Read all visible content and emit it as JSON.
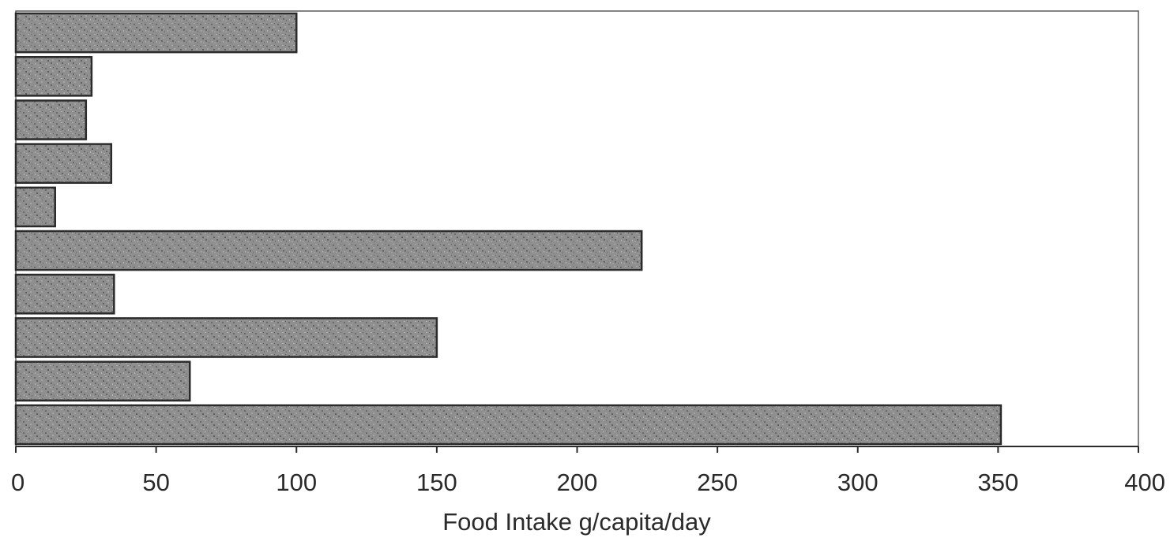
{
  "chart_data": {
    "type": "bar",
    "orientation": "horizontal",
    "categories": [
      "",
      "",
      "",
      "",
      "",
      "",
      "",
      "",
      "",
      ""
    ],
    "values": [
      100,
      27,
      25,
      34,
      14,
      223,
      35,
      150,
      62,
      351
    ],
    "title": "",
    "xlabel": "Food Intake g/capita/day",
    "ylabel": "",
    "xlim": [
      0,
      400
    ],
    "x_ticks": [
      0,
      50,
      100,
      150,
      200,
      250,
      300,
      350,
      400
    ],
    "x_tick_labels": [
      "0",
      "50",
      "100",
      "150",
      "200",
      "250",
      "300",
      "350",
      "400"
    ],
    "grid": false,
    "legend": "none",
    "colors": {
      "bar_fill": "#8e8e8e",
      "bar_edge": "#2b2b2b",
      "frame": "#5a5a5a"
    }
  }
}
